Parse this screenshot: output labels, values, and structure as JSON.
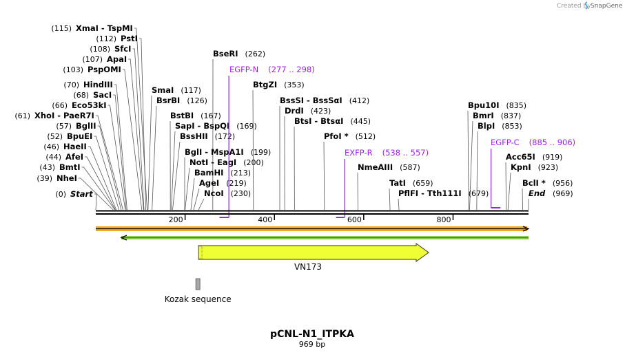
{
  "header": {
    "created_by": "Created by",
    "brand": "SnapGene"
  },
  "map": {
    "name": "pCNL-N1_ITPKA",
    "length_label": "969 bp",
    "length": 969,
    "axis_ticks": [
      "200",
      "400",
      "600",
      "800"
    ],
    "axis_tick_values": [
      200,
      400,
      600,
      800
    ]
  },
  "sites": [
    {
      "pos": 0,
      "name": "Start",
      "pos_label": "(0)",
      "italic": true
    },
    {
      "pos": 39,
      "name": "NheI",
      "pos_label": "(39)"
    },
    {
      "pos": 43,
      "name": "BmtI",
      "pos_label": "(43)"
    },
    {
      "pos": 44,
      "name": "AfeI",
      "pos_label": "(44)"
    },
    {
      "pos": 46,
      "name": "HaeII",
      "pos_label": "(46)"
    },
    {
      "pos": 52,
      "name": "BpuEI",
      "pos_label": "(52)"
    },
    {
      "pos": 57,
      "name": "BglII",
      "pos_label": "(57)"
    },
    {
      "pos": 61,
      "name": "XhoI  - PaeR7I",
      "pos_label": "(61)"
    },
    {
      "pos": 66,
      "name": "Eco53kI",
      "pos_label": "(66)"
    },
    {
      "pos": 68,
      "name": "SacI",
      "pos_label": "(68)"
    },
    {
      "pos": 70,
      "name": "HindIII",
      "pos_label": "(70)"
    },
    {
      "pos": 103,
      "name": "PspOMI",
      "pos_label": "(103)"
    },
    {
      "pos": 107,
      "name": "ApaI",
      "pos_label": "(107)"
    },
    {
      "pos": 108,
      "name": "SfcI",
      "pos_label": "(108)"
    },
    {
      "pos": 112,
      "name": "PstI",
      "pos_label": "(112)"
    },
    {
      "pos": 115,
      "name": "XmaI  - TspMI",
      "pos_label": "(115)"
    },
    {
      "pos": 117,
      "name": "SmaI",
      "pos_label": "(117)"
    },
    {
      "pos": 126,
      "name": "BsrBI",
      "pos_label": "(126)"
    },
    {
      "pos": 167,
      "name": "BstBI",
      "pos_label": "(167)"
    },
    {
      "pos": 169,
      "name": "SapI  - BspQI",
      "pos_label": "(169)"
    },
    {
      "pos": 172,
      "name": "BssHII",
      "pos_label": "(172)"
    },
    {
      "pos": 199,
      "name": "BglI  - MspA1I",
      "pos_label": "(199)"
    },
    {
      "pos": 200,
      "name": "NotI  - EagI",
      "pos_label": "(200)"
    },
    {
      "pos": 213,
      "name": "BamHI",
      "pos_label": "(213)"
    },
    {
      "pos": 219,
      "name": "AgeI",
      "pos_label": "(219)"
    },
    {
      "pos": 230,
      "name": "NcoI",
      "pos_label": "(230)"
    },
    {
      "pos": 262,
      "name": "BseRI",
      "pos_label": "(262)"
    },
    {
      "pos": 353,
      "name": "BtgZI",
      "pos_label": "(353)"
    },
    {
      "pos": 412,
      "name": "BssSI  - BssSαI",
      "pos_label": "(412)"
    },
    {
      "pos": 423,
      "name": "DrdI",
      "pos_label": "(423)"
    },
    {
      "pos": 445,
      "name": "BtsI  - BtsαI",
      "pos_label": "(445)"
    },
    {
      "pos": 512,
      "name": "PfoI *",
      "pos_label": "(512)"
    },
    {
      "pos": 587,
      "name": "NmeAIII",
      "pos_label": "(587)"
    },
    {
      "pos": 659,
      "name": "TatI",
      "pos_label": "(659)"
    },
    {
      "pos": 679,
      "name": "PflFI  - Tth111I",
      "pos_label": "(679)"
    },
    {
      "pos": 835,
      "name": "Bpu10I",
      "pos_label": "(835)"
    },
    {
      "pos": 837,
      "name": "BmrI",
      "pos_label": "(837)"
    },
    {
      "pos": 853,
      "name": "BlpI",
      "pos_label": "(853)"
    },
    {
      "pos": 919,
      "name": "Acc65I",
      "pos_label": "(919)"
    },
    {
      "pos": 923,
      "name": "KpnI",
      "pos_label": "(923)"
    },
    {
      "pos": 956,
      "name": "BclI *",
      "pos_label": "(956)"
    },
    {
      "pos": 969,
      "name": "End",
      "pos_label": "(969)",
      "italic": true
    }
  ],
  "primers": [
    {
      "name": "EGFP-N",
      "range_label": "(277 .. 298)",
      "start": 277,
      "end": 298,
      "direction": "reverse"
    },
    {
      "name": "EXFP-R",
      "range_label": "(538 .. 557)",
      "start": 538,
      "end": 557,
      "direction": "reverse"
    },
    {
      "name": "EGFP-C",
      "range_label": "(885 .. 906)",
      "start": 885,
      "end": 906,
      "direction": "forward"
    }
  ],
  "features": [
    {
      "name": "VN173",
      "start": 230,
      "end": 749,
      "direction": "forward",
      "color": "#eeff33"
    },
    {
      "name": "Kozak sequence",
      "start": 224,
      "end": 234,
      "color": "#a8a8a8"
    }
  ],
  "colors": {
    "forward_strand": "#f5a623",
    "reverse_strand": "#6ab04c",
    "primer": "#a020f0",
    "cds": "#eeff33"
  }
}
